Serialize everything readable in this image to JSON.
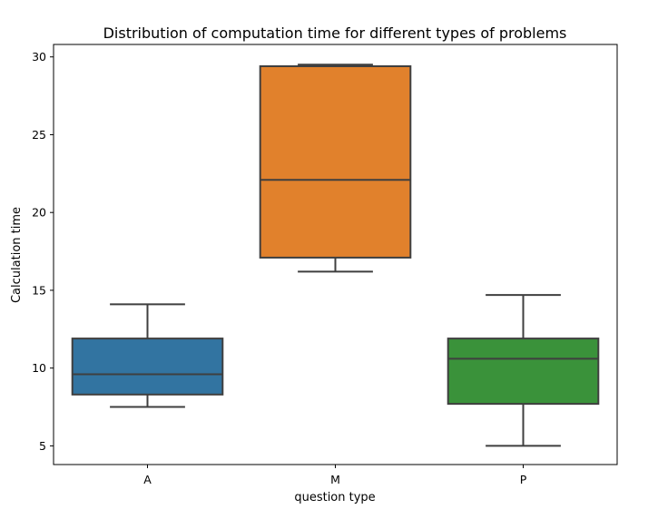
{
  "chart_data": {
    "type": "box",
    "title": "Distribution of computation time for different types of problems",
    "xlabel": "question type",
    "ylabel": "Calculation time",
    "ylim": [
      3.8,
      30.8
    ],
    "yticks": [
      5,
      10,
      15,
      20,
      25,
      30
    ],
    "grid": false,
    "legend": "none",
    "categories": [
      "A",
      "M",
      "P"
    ],
    "boxes": [
      {
        "category": "A",
        "whisker_low": 7.5,
        "q1": 8.3,
        "median": 9.6,
        "q3": 11.9,
        "whisker_high": 14.1,
        "color": "#3274a1"
      },
      {
        "category": "M",
        "whisker_low": 16.2,
        "q1": 17.1,
        "median": 22.1,
        "q3": 29.4,
        "whisker_high": 29.5,
        "color": "#e1812c"
      },
      {
        "category": "P",
        "whisker_low": 5.0,
        "q1": 7.7,
        "median": 10.6,
        "q3": 11.9,
        "whisker_high": 14.7,
        "color": "#3a923a"
      }
    ],
    "line_color": "#3f3f3f"
  }
}
